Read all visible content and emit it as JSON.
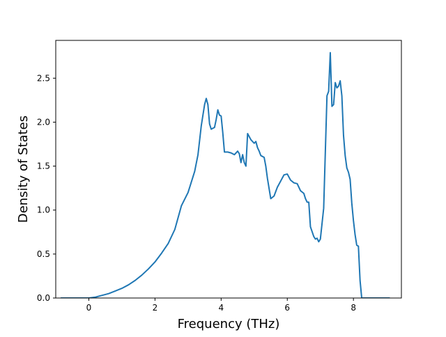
{
  "chart_data": {
    "type": "line",
    "title": "",
    "xlabel": "Frequency (THz)",
    "ylabel": "Density of States",
    "xlim": [
      -1.0,
      9.45
    ],
    "ylim": [
      0.0,
      2.93
    ],
    "xticks": [
      0,
      2,
      4,
      6,
      8
    ],
    "yticks": [
      0.0,
      0.5,
      1.0,
      1.5,
      2.0,
      2.5
    ],
    "xtick_labels": [
      "0",
      "2",
      "4",
      "6",
      "8"
    ],
    "ytick_labels": [
      "0.0",
      "0.5",
      "1.0",
      "1.5",
      "2.0",
      "2.5"
    ],
    "grid": false,
    "legend": "none",
    "line_color": "#1f77b4",
    "series": [
      {
        "x": [
          -0.85,
          -0.6,
          -0.3,
          0.0,
          0.2,
          0.4,
          0.6,
          0.8,
          1.0,
          1.2,
          1.4,
          1.6,
          1.8,
          2.0,
          2.2,
          2.4,
          2.6,
          2.8,
          3.0,
          3.2,
          3.3,
          3.4,
          3.5,
          3.55,
          3.6,
          3.65,
          3.7,
          3.8,
          3.85,
          3.9,
          3.95,
          4.0,
          4.05,
          4.1,
          4.2,
          4.3,
          4.4,
          4.5,
          4.55,
          4.6,
          4.65,
          4.7,
          4.75,
          4.8,
          4.9,
          5.0,
          5.05,
          5.1,
          5.15,
          5.2,
          5.3,
          5.35,
          5.4,
          5.5,
          5.6,
          5.7,
          5.8,
          5.9,
          6.0,
          6.1,
          6.2,
          6.3,
          6.4,
          6.5,
          6.55,
          6.6,
          6.65,
          6.7,
          6.8,
          6.85,
          6.9,
          6.95,
          7.0,
          7.1,
          7.2,
          7.25,
          7.3,
          7.35,
          7.4,
          7.45,
          7.5,
          7.55,
          7.6,
          7.65,
          7.7,
          7.75,
          7.8,
          7.85,
          7.9,
          7.95,
          8.0,
          8.05,
          8.1,
          8.15,
          8.2,
          8.25,
          8.3,
          8.5,
          8.8,
          9.1
        ],
        "y": [
          0.0,
          0.0,
          0.0,
          0.0,
          0.01,
          0.03,
          0.05,
          0.08,
          0.11,
          0.15,
          0.2,
          0.26,
          0.33,
          0.41,
          0.51,
          0.62,
          0.78,
          1.05,
          1.2,
          1.44,
          1.63,
          1.96,
          2.2,
          2.27,
          2.2,
          1.98,
          1.92,
          1.94,
          2.03,
          2.14,
          2.08,
          2.07,
          1.88,
          1.66,
          1.66,
          1.65,
          1.63,
          1.67,
          1.64,
          1.54,
          1.63,
          1.54,
          1.5,
          1.87,
          1.8,
          1.76,
          1.78,
          1.71,
          1.67,
          1.62,
          1.6,
          1.5,
          1.36,
          1.13,
          1.16,
          1.26,
          1.33,
          1.4,
          1.41,
          1.34,
          1.31,
          1.3,
          1.22,
          1.19,
          1.13,
          1.09,
          1.09,
          0.81,
          0.7,
          0.67,
          0.68,
          0.64,
          0.67,
          1.02,
          2.3,
          2.35,
          2.79,
          2.18,
          2.2,
          2.45,
          2.39,
          2.41,
          2.47,
          2.3,
          1.85,
          1.62,
          1.48,
          1.43,
          1.35,
          1.08,
          0.88,
          0.72,
          0.6,
          0.59,
          0.2,
          0.0,
          0.0,
          0.0,
          0.0,
          0.0
        ]
      }
    ]
  }
}
